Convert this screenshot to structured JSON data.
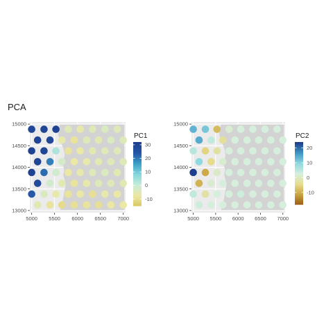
{
  "title": "PCA",
  "chart_data": [
    {
      "type": "scatter",
      "subtype": "spatial-spot-map",
      "legend_title": "PC1",
      "legend_ticks": [
        30,
        20,
        10,
        0,
        -10
      ],
      "legend_range": [
        -15,
        32
      ],
      "colorscale": [
        "#d8c65d",
        "#ece7a4",
        "#c9ecd8",
        "#88d8dd",
        "#3ea2c9",
        "#2656a6",
        "#1e3f8f"
      ],
      "x_ticks": [
        5000,
        5500,
        6000,
        6500,
        7000
      ],
      "y_ticks": [
        13000,
        13500,
        14000,
        14500,
        15000
      ],
      "xlim": [
        4960,
        7050
      ],
      "ylim": [
        12950,
        15050
      ],
      "tissue_boundary_x": [
        5620,
        5590,
        5580,
        5610,
        5660,
        5700,
        5720,
        5700,
        5680,
        5710,
        5690,
        5720,
        5740,
        5720,
        5700,
        5680,
        5650,
        5620
      ],
      "points": [
        {
          "x": 5000,
          "y": 14880,
          "v": 29
        },
        {
          "x": 5270,
          "y": 14880,
          "v": 30
        },
        {
          "x": 5530,
          "y": 14880,
          "v": 31
        },
        {
          "x": 5800,
          "y": 14880,
          "v": -4
        },
        {
          "x": 6060,
          "y": 14880,
          "v": -6
        },
        {
          "x": 6330,
          "y": 14880,
          "v": -4
        },
        {
          "x": 6600,
          "y": 14880,
          "v": -3
        },
        {
          "x": 6870,
          "y": 14880,
          "v": -4
        },
        {
          "x": 5130,
          "y": 14630,
          "v": 30
        },
        {
          "x": 5400,
          "y": 14630,
          "v": 29
        },
        {
          "x": 5660,
          "y": 14630,
          "v": -6
        },
        {
          "x": 5930,
          "y": 14630,
          "v": -8
        },
        {
          "x": 6200,
          "y": 14630,
          "v": -4
        },
        {
          "x": 6460,
          "y": 14630,
          "v": -5
        },
        {
          "x": 6730,
          "y": 14630,
          "v": -3
        },
        {
          "x": 7000,
          "y": 14630,
          "v": -4
        },
        {
          "x": 5000,
          "y": 14380,
          "v": 31
        },
        {
          "x": 5270,
          "y": 14380,
          "v": 30
        },
        {
          "x": 5530,
          "y": 14380,
          "v": 4
        },
        {
          "x": 5800,
          "y": 14380,
          "v": -8
        },
        {
          "x": 6060,
          "y": 14380,
          "v": -7
        },
        {
          "x": 6330,
          "y": 14380,
          "v": -5
        },
        {
          "x": 6600,
          "y": 14380,
          "v": -4
        },
        {
          "x": 6870,
          "y": 14380,
          "v": -4
        },
        {
          "x": 5130,
          "y": 14130,
          "v": 30
        },
        {
          "x": 5400,
          "y": 14130,
          "v": 20
        },
        {
          "x": 5660,
          "y": 14130,
          "v": -2
        },
        {
          "x": 5930,
          "y": 14130,
          "v": -7
        },
        {
          "x": 6200,
          "y": 14130,
          "v": -6
        },
        {
          "x": 6460,
          "y": 14130,
          "v": -5
        },
        {
          "x": 6730,
          "y": 14130,
          "v": -4
        },
        {
          "x": 7000,
          "y": 14130,
          "v": -4
        },
        {
          "x": 5000,
          "y": 13880,
          "v": 31
        },
        {
          "x": 5270,
          "y": 13880,
          "v": 22
        },
        {
          "x": 5530,
          "y": 13880,
          "v": -1
        },
        {
          "x": 5800,
          "y": 13880,
          "v": -7
        },
        {
          "x": 6060,
          "y": 13880,
          "v": -6
        },
        {
          "x": 6330,
          "y": 13880,
          "v": -4
        },
        {
          "x": 6600,
          "y": 13880,
          "v": -3
        },
        {
          "x": 6870,
          "y": 13880,
          "v": -5
        },
        {
          "x": 5130,
          "y": 13630,
          "v": 28
        },
        {
          "x": 5400,
          "y": 13630,
          "v": -1
        },
        {
          "x": 5660,
          "y": 13630,
          "v": -5
        },
        {
          "x": 5930,
          "y": 13630,
          "v": -8
        },
        {
          "x": 6200,
          "y": 13630,
          "v": -6
        },
        {
          "x": 6460,
          "y": 13630,
          "v": -4
        },
        {
          "x": 6730,
          "y": 13630,
          "v": -4
        },
        {
          "x": 7000,
          "y": 13630,
          "v": -5
        },
        {
          "x": 5000,
          "y": 13380,
          "v": 24
        },
        {
          "x": 5270,
          "y": 13380,
          "v": -3
        },
        {
          "x": 5530,
          "y": 13380,
          "v": -6
        },
        {
          "x": 5800,
          "y": 13380,
          "v": -8
        },
        {
          "x": 6060,
          "y": 13380,
          "v": -7
        },
        {
          "x": 6330,
          "y": 13380,
          "v": -9
        },
        {
          "x": 6600,
          "y": 13380,
          "v": -6
        },
        {
          "x": 6870,
          "y": 13380,
          "v": -7
        },
        {
          "x": 5130,
          "y": 13130,
          "v": -5
        },
        {
          "x": 5400,
          "y": 13130,
          "v": -8
        },
        {
          "x": 5660,
          "y": 13130,
          "v": -10
        },
        {
          "x": 5930,
          "y": 13130,
          "v": -9
        },
        {
          "x": 6200,
          "y": 13130,
          "v": -8
        },
        {
          "x": 6460,
          "y": 13130,
          "v": -9
        },
        {
          "x": 6730,
          "y": 13130,
          "v": -7
        },
        {
          "x": 7000,
          "y": 13130,
          "v": -7
        }
      ]
    },
    {
      "type": "scatter",
      "subtype": "spatial-spot-map",
      "legend_title": "PC2",
      "legend_ticks": [
        20,
        10,
        0,
        -10
      ],
      "legend_range": [
        -18,
        24
      ],
      "colorscale": [
        "#9a5a14",
        "#c9a23e",
        "#e6dc8e",
        "#d6efdc",
        "#8fd9df",
        "#3f97c7",
        "#1f3f8c"
      ],
      "x_ticks": [
        5000,
        5500,
        6000,
        6500,
        7000
      ],
      "y_ticks": [
        13000,
        13500,
        14000,
        14500,
        15000
      ],
      "xlim": [
        4960,
        7050
      ],
      "ylim": [
        12950,
        15050
      ],
      "tissue_boundary_x": [
        5620,
        5590,
        5580,
        5610,
        5660,
        5700,
        5720,
        5700,
        5680,
        5710,
        5690,
        5720,
        5740,
        5720,
        5700,
        5680,
        5650,
        5620
      ],
      "points": [
        {
          "x": 5000,
          "y": 14880,
          "v": 14
        },
        {
          "x": 5270,
          "y": 14880,
          "v": 12
        },
        {
          "x": 5530,
          "y": 14880,
          "v": -8
        },
        {
          "x": 5800,
          "y": 14880,
          "v": 2
        },
        {
          "x": 6060,
          "y": 14880,
          "v": 3
        },
        {
          "x": 6330,
          "y": 14880,
          "v": 3
        },
        {
          "x": 6600,
          "y": 14880,
          "v": 3
        },
        {
          "x": 6870,
          "y": 14880,
          "v": 3
        },
        {
          "x": 5130,
          "y": 14630,
          "v": 15
        },
        {
          "x": 5400,
          "y": 14630,
          "v": 5
        },
        {
          "x": 5660,
          "y": 14630,
          "v": -3
        },
        {
          "x": 5930,
          "y": 14630,
          "v": 3
        },
        {
          "x": 6200,
          "y": 14630,
          "v": 3
        },
        {
          "x": 6460,
          "y": 14630,
          "v": 3
        },
        {
          "x": 6730,
          "y": 14630,
          "v": 3
        },
        {
          "x": 7000,
          "y": 14630,
          "v": 3
        },
        {
          "x": 5000,
          "y": 14380,
          "v": 6
        },
        {
          "x": 5270,
          "y": 14380,
          "v": -5
        },
        {
          "x": 5530,
          "y": 14380,
          "v": -2
        },
        {
          "x": 5800,
          "y": 14380,
          "v": 3
        },
        {
          "x": 6060,
          "y": 14380,
          "v": 3
        },
        {
          "x": 6330,
          "y": 14380,
          "v": 3
        },
        {
          "x": 6600,
          "y": 14380,
          "v": 3
        },
        {
          "x": 6870,
          "y": 14380,
          "v": 3
        },
        {
          "x": 5130,
          "y": 14130,
          "v": 10
        },
        {
          "x": 5400,
          "y": 14130,
          "v": -4
        },
        {
          "x": 5660,
          "y": 14130,
          "v": 2
        },
        {
          "x": 5930,
          "y": 14130,
          "v": 3
        },
        {
          "x": 6200,
          "y": 14130,
          "v": 3
        },
        {
          "x": 6460,
          "y": 14130,
          "v": 3
        },
        {
          "x": 6730,
          "y": 14130,
          "v": 3
        },
        {
          "x": 7000,
          "y": 14130,
          "v": 3
        },
        {
          "x": 5000,
          "y": 13880,
          "v": 24
        },
        {
          "x": 5270,
          "y": 13880,
          "v": -10
        },
        {
          "x": 5530,
          "y": 13880,
          "v": 1
        },
        {
          "x": 5800,
          "y": 13880,
          "v": 3
        },
        {
          "x": 6060,
          "y": 13880,
          "v": 3
        },
        {
          "x": 6330,
          "y": 13880,
          "v": 3
        },
        {
          "x": 6600,
          "y": 13880,
          "v": 3
        },
        {
          "x": 6870,
          "y": 13880,
          "v": 3
        },
        {
          "x": 5130,
          "y": 13630,
          "v": -9
        },
        {
          "x": 5400,
          "y": 13630,
          "v": 2
        },
        {
          "x": 5660,
          "y": 13630,
          "v": 3
        },
        {
          "x": 5930,
          "y": 13630,
          "v": 3
        },
        {
          "x": 6200,
          "y": 13630,
          "v": 3
        },
        {
          "x": 6460,
          "y": 13630,
          "v": 3
        },
        {
          "x": 6730,
          "y": 13630,
          "v": 3
        },
        {
          "x": 7000,
          "y": 13630,
          "v": 3
        },
        {
          "x": 5000,
          "y": 13380,
          "v": 5
        },
        {
          "x": 5270,
          "y": 13380,
          "v": -2
        },
        {
          "x": 5530,
          "y": 13380,
          "v": 3
        },
        {
          "x": 5800,
          "y": 13380,
          "v": 3
        },
        {
          "x": 6060,
          "y": 13380,
          "v": 4
        },
        {
          "x": 6330,
          "y": 13380,
          "v": 3
        },
        {
          "x": 6600,
          "y": 13380,
          "v": 3
        },
        {
          "x": 6870,
          "y": 13380,
          "v": 3
        },
        {
          "x": 5130,
          "y": 13130,
          "v": 4
        },
        {
          "x": 5400,
          "y": 13130,
          "v": 3
        },
        {
          "x": 5660,
          "y": 13130,
          "v": 3
        },
        {
          "x": 5930,
          "y": 13130,
          "v": 3
        },
        {
          "x": 6200,
          "y": 13130,
          "v": 3
        },
        {
          "x": 6460,
          "y": 13130,
          "v": 3
        },
        {
          "x": 6730,
          "y": 13130,
          "v": 3
        },
        {
          "x": 7000,
          "y": 13130,
          "v": 3
        }
      ]
    }
  ]
}
